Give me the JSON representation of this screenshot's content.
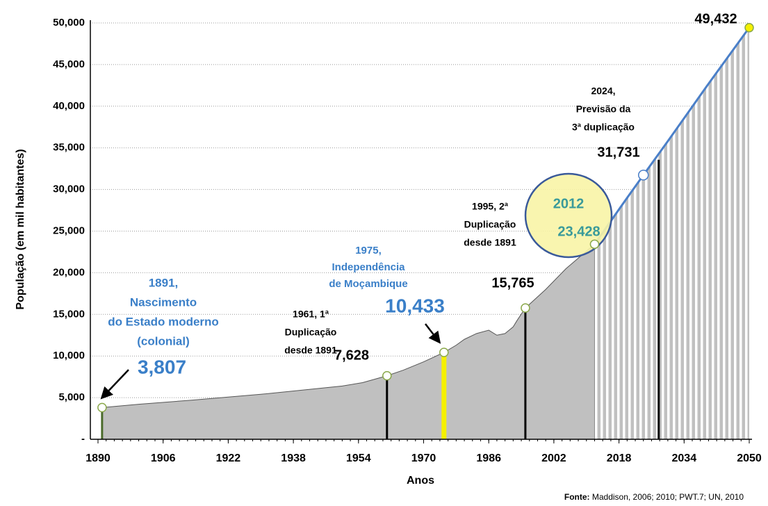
{
  "chart_data": {
    "type": "area",
    "y_label": "População (em mil habitantes)",
    "x_label": "Anos",
    "source_label": "Fonte:",
    "source": "Maddison, 2006; 2010; PWT.7; UN, 2010",
    "x": [
      1891,
      1900,
      1913,
      1930,
      1940,
      1950,
      1955,
      1961,
      1965,
      1970,
      1975,
      1978,
      1980,
      1983,
      1986,
      1988,
      1990,
      1992,
      1993,
      1995,
      2000,
      2005,
      2012,
      2020,
      2024,
      2030,
      2040,
      2050
    ],
    "values": [
      3807,
      4200,
      4700,
      5400,
      5900,
      6400,
      6800,
      7628,
      8300,
      9300,
      10433,
      11300,
      12000,
      12700,
      13100,
      12500,
      12700,
      13500,
      14300,
      15765,
      18000,
      20500,
      23428,
      29000,
      31731,
      35800,
      42700,
      49432
    ],
    "value_labels": [
      "3,807",
      null,
      null,
      null,
      null,
      null,
      null,
      "7,628",
      null,
      null,
      "10,433",
      null,
      null,
      null,
      null,
      null,
      null,
      null,
      null,
      "15,765",
      null,
      null,
      "23,428",
      null,
      "31,731",
      null,
      null,
      "49,432"
    ],
    "annotations": [
      {
        "lines": [
          "1891,",
          "Nascimento",
          "do Estado moderno",
          "(colonial)"
        ]
      },
      {
        "lines": [
          "1961, 1ª",
          "Duplicação",
          "desde 1891"
        ]
      },
      {
        "lines": [
          "1975,",
          "Independência",
          "de Moçambique"
        ]
      },
      {
        "lines": [
          "1995, 2ª",
          "Duplicação",
          "desde 1891"
        ]
      },
      {
        "lines": [
          "2024,",
          "Previsão da",
          "3ª  duplicação"
        ]
      }
    ],
    "color": "#c0c0c0",
    "line_color": "#4a7fc8",
    "xlim": [
      1890,
      2050
    ],
    "xticks": [
      1890,
      1906,
      1922,
      1938,
      1954,
      1970,
      1986,
      2002,
      2018,
      2034,
      2050
    ],
    "ylim": [
      0,
      50000
    ],
    "yticks": [
      {
        "value": 0,
        "label": "-"
      },
      {
        "value": 5000,
        "label": "5,000"
      },
      {
        "value": 10000,
        "label": "10,000"
      },
      {
        "value": 15000,
        "label": "15,000"
      },
      {
        "value": 20000,
        "label": "20,000"
      },
      {
        "value": 25000,
        "label": "25,000"
      },
      {
        "value": 30000,
        "label": "30,000"
      },
      {
        "value": 35000,
        "label": "35,000"
      },
      {
        "value": 40000,
        "label": "40,000"
      },
      {
        "value": 45000,
        "label": "45,000"
      },
      {
        "value": 50000,
        "label": "50,000"
      }
    ],
    "grid": true
  }
}
